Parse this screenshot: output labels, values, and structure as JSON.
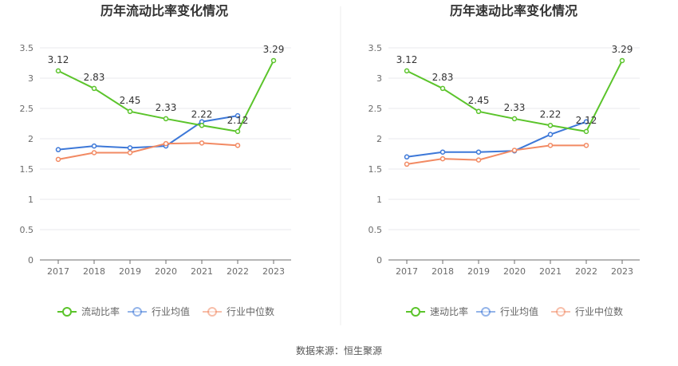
{
  "source_label": "数据来源：恒生聚源",
  "chart_data": [
    {
      "type": "line",
      "title": "历年流动比率变化情况",
      "categories": [
        "2017",
        "2018",
        "2019",
        "2020",
        "2021",
        "2022",
        "2023"
      ],
      "y_ticks": [
        "0",
        "0.5",
        "1",
        "1.5",
        "2",
        "2.5",
        "3",
        "3.5"
      ],
      "ylim": [
        0,
        3.5
      ],
      "grid": true,
      "legend_position": "bottom",
      "series": [
        {
          "name": "流动比率",
          "color": "#5bc42b",
          "values": [
            3.12,
            2.83,
            2.45,
            2.33,
            2.22,
            2.12,
            3.29
          ],
          "labels": [
            "3.12",
            "2.83",
            "2.45",
            "2.33",
            "2.22",
            "2.12",
            "3.29"
          ]
        },
        {
          "name": "行业均值",
          "color": "#3d78d8",
          "values": [
            1.82,
            1.88,
            1.85,
            1.88,
            2.28,
            2.38,
            null
          ]
        },
        {
          "name": "行业中位数",
          "color": "#f28a63",
          "values": [
            1.66,
            1.77,
            1.77,
            1.92,
            1.93,
            1.89,
            null
          ]
        }
      ]
    },
    {
      "type": "line",
      "title": "历年速动比率变化情况",
      "categories": [
        "2017",
        "2018",
        "2019",
        "2020",
        "2021",
        "2022",
        "2023"
      ],
      "y_ticks": [
        "0",
        "0.5",
        "1",
        "1.5",
        "2",
        "2.5",
        "3",
        "3.5"
      ],
      "ylim": [
        0,
        3.5
      ],
      "grid": true,
      "legend_position": "bottom",
      "series": [
        {
          "name": "速动比率",
          "color": "#5bc42b",
          "values": [
            3.12,
            2.83,
            2.45,
            2.33,
            2.22,
            2.12,
            3.29
          ],
          "labels": [
            "3.12",
            "2.83",
            "2.45",
            "2.33",
            "2.22",
            "2.12",
            "3.29"
          ]
        },
        {
          "name": "行业均值",
          "color": "#3d78d8",
          "values": [
            1.7,
            1.78,
            1.78,
            1.8,
            2.07,
            2.28,
            null
          ]
        },
        {
          "name": "行业中位数",
          "color": "#f28a63",
          "values": [
            1.58,
            1.67,
            1.65,
            1.81,
            1.89,
            1.89,
            null
          ]
        }
      ]
    }
  ]
}
